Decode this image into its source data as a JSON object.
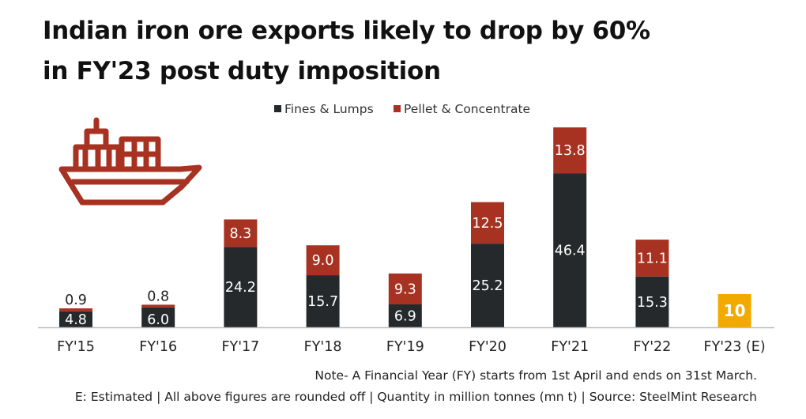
{
  "title_line1": "Indian iron ore exports likely to drop by 60%",
  "title_line2": "in FY'23 post duty imposition",
  "colors": {
    "fines": "#25292b",
    "pellet": "#a83222",
    "estimate": "#f2a900",
    "icon": "#a83222"
  },
  "icon": "cargo-ship-icon",
  "note_line1": "Note- A Financial Year (FY) starts from 1st April and ends on 31st March.",
  "note_line2": "E: Estimated  |  All above figures are rounded off  |  Quantity in million tonnes (mn t)  |  Source: SteelMint Research",
  "chart_data": {
    "type": "bar",
    "stacked": true,
    "categories": [
      "FY'15",
      "FY'16",
      "FY'17",
      "FY'18",
      "FY'19",
      "FY'20",
      "FY'21",
      "FY'22",
      "FY'23 (E)"
    ],
    "series": [
      {
        "name": "Fines & Lumps",
        "values": [
          4.8,
          6.0,
          24.2,
          15.7,
          6.9,
          25.2,
          46.4,
          15.3,
          null
        ],
        "labels": [
          "4.8",
          "6.0",
          "24.2",
          "15.7",
          "6.9",
          "25.2",
          "46.4",
          "15.3",
          ""
        ]
      },
      {
        "name": "Pellet & Concentrate",
        "values": [
          0.9,
          0.8,
          8.3,
          9.0,
          9.3,
          12.5,
          13.8,
          11.1,
          null
        ],
        "labels": [
          "0.9",
          "0.8",
          "8.3",
          "9.0",
          "9.3",
          "12.5",
          "13.8",
          "11.1",
          ""
        ]
      }
    ],
    "estimate": {
      "category": "FY'23 (E)",
      "value": 10,
      "label": "10"
    },
    "legend_position": "top-center",
    "grid": false,
    "ylim": [
      0,
      60
    ]
  }
}
